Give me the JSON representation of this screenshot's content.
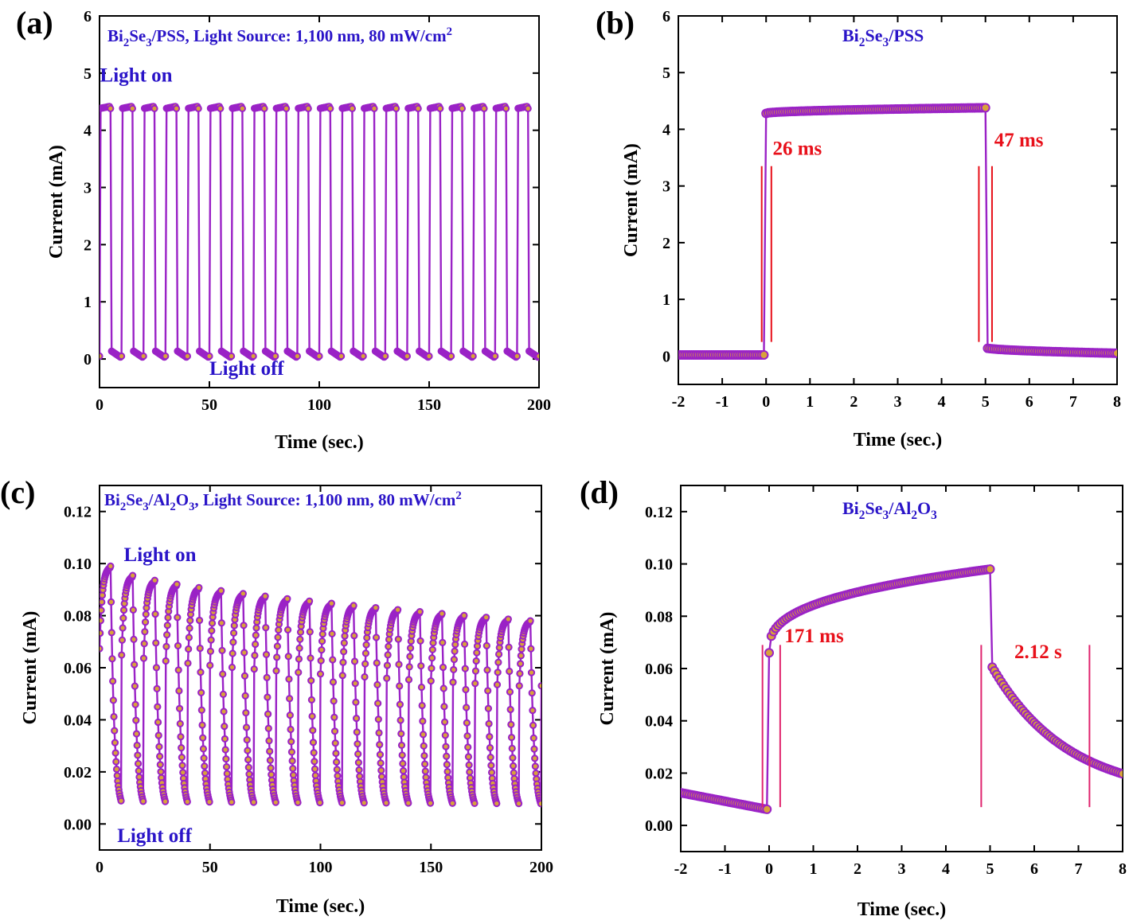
{
  "colors": {
    "series": "#9a22c6",
    "marker_fill": "#d9a23a",
    "marker_stroke": "#9a22c6",
    "label_blue": "#2a14c8",
    "label_red": "#e8101a",
    "guide_red": "#e8101a",
    "guide_pink": "#e0246e"
  },
  "chart_data": [
    {
      "panel": "(a)",
      "type": "line",
      "title_parts": [
        {
          "t": "Bi"
        },
        {
          "t": "2",
          "s": "sub"
        },
        {
          "t": "Se"
        },
        {
          "t": "3",
          "s": "sub"
        },
        {
          "t": "/PSS, Light Source: 1,100 nm, 80 mW/cm"
        },
        {
          "t": "2",
          "s": "sup"
        }
      ],
      "xlabel": "Time (sec.)",
      "ylabel": "Current (mA)",
      "xlim": [
        0,
        200
      ],
      "ylim": [
        -0.5,
        6
      ],
      "xticks": [
        0,
        50,
        100,
        150,
        200
      ],
      "yticks": [
        0,
        1,
        2,
        3,
        4,
        5,
        6
      ],
      "ytick_labels": [
        "0",
        "1",
        "2",
        "3",
        "4",
        "5",
        "6"
      ],
      "series": [
        {
          "name": "Bi2Se3/PSS",
          "model": "square",
          "period": 10,
          "on_fraction": 0.5,
          "phase": 0,
          "low": 0.05,
          "high": 4.38,
          "rise_tau": 0.03,
          "decay_tau": 0.05,
          "high_end": 4.42,
          "low_start": 0.15,
          "low_end": 0.02,
          "dt": 0.5
        }
      ],
      "annotations": [
        {
          "text": "Light on",
          "x": 0.2,
          "y": 4.85,
          "color": "blue"
        },
        {
          "text": "Light off",
          "x": 50,
          "y": -0.28,
          "color": "blue"
        }
      ]
    },
    {
      "panel": "(b)",
      "type": "line",
      "title_parts": [
        {
          "t": "Bi"
        },
        {
          "t": "2",
          "s": "sub"
        },
        {
          "t": "Se"
        },
        {
          "t": "3",
          "s": "sub"
        },
        {
          "t": "/PSS"
        }
      ],
      "xlabel": "Time (sec.)",
      "ylabel": "Current (mA)",
      "xlim": [
        -2,
        8
      ],
      "ylim": [
        -0.5,
        6
      ],
      "xticks": [
        -2,
        -1,
        0,
        1,
        2,
        3,
        4,
        5,
        6,
        7,
        8
      ],
      "yticks": [
        0,
        1,
        2,
        3,
        4,
        5,
        6
      ],
      "ytick_labels": [
        "0",
        "1",
        "2",
        "3",
        "4",
        "5",
        "6"
      ],
      "series": [
        {
          "name": "Bi2Se3/PSS",
          "model": "single",
          "on_time": 0,
          "off_time": 5,
          "low": 0.02,
          "high": 4.28,
          "high_end": 4.38,
          "rise_tau": 0.026,
          "decay_tau": 0.047,
          "low_after": 0.15,
          "low_end": 0.05,
          "dt": 0.05
        }
      ],
      "guides": [
        -0.1,
        0.12,
        4.85,
        5.15
      ],
      "annotations": [
        {
          "text": "26 ms",
          "x": 0.15,
          "y": 3.55,
          "color": "red"
        },
        {
          "text": "47 ms",
          "x": 5.2,
          "y": 3.7,
          "color": "red"
        }
      ]
    },
    {
      "panel": "(c)",
      "type": "line",
      "title_parts": [
        {
          "t": "Bi"
        },
        {
          "t": "2",
          "s": "sub"
        },
        {
          "t": "Se"
        },
        {
          "t": "3",
          "s": "sub"
        },
        {
          "t": "/Al"
        },
        {
          "t": "2",
          "s": "sub"
        },
        {
          "t": "O"
        },
        {
          "t": "3",
          "s": "sub"
        },
        {
          "t": ", Light Source: 1,100 nm, 80 mW/cm"
        },
        {
          "t": "2",
          "s": "sup"
        }
      ],
      "xlabel": "Time (sec.)",
      "ylabel": "Current (mA)",
      "xlim": [
        0,
        200
      ],
      "ylim": [
        -0.01,
        0.13
      ],
      "xticks": [
        0,
        50,
        100,
        150,
        200
      ],
      "yticks": [
        0,
        0.02,
        0.04,
        0.06,
        0.08,
        0.1,
        0.12
      ],
      "ytick_labels": [
        "0.00",
        "0.02",
        "0.04",
        "0.06",
        "0.08",
        "0.10",
        "0.12"
      ],
      "series": [
        {
          "name": "Bi2Se3/Al2O3",
          "model": "slow",
          "period": 10,
          "on_fraction": 0.5,
          "phase": 0,
          "peaks_start": 0.099,
          "peaks_end": 0.078,
          "low": 0.004,
          "rise_tau": 1.2,
          "decay_tau": 1.6,
          "dt": 0.25
        }
      ],
      "annotations": [
        {
          "text": "Light on",
          "x": 11,
          "y": 0.101,
          "color": "blue"
        },
        {
          "text": "Light off",
          "x": 8,
          "y": -0.007,
          "color": "blue"
        }
      ]
    },
    {
      "panel": "(d)",
      "type": "line",
      "title_parts": [
        {
          "t": "Bi"
        },
        {
          "t": "2",
          "s": "sub"
        },
        {
          "t": "Se"
        },
        {
          "t": "3",
          "s": "sub"
        },
        {
          "t": "/Al"
        },
        {
          "t": "2",
          "s": "sub"
        },
        {
          "t": "O"
        },
        {
          "t": "3",
          "s": "sub"
        }
      ],
      "xlabel": "Time (sec.)",
      "ylabel": "Current (mA)",
      "xlim": [
        -2,
        8
      ],
      "ylim": [
        -0.01,
        0.13
      ],
      "xticks": [
        -2,
        -1,
        0,
        1,
        2,
        3,
        4,
        5,
        6,
        7,
        8
      ],
      "yticks": [
        0,
        0.02,
        0.04,
        0.06,
        0.08,
        0.1,
        0.12
      ],
      "ytick_labels": [
        "0.00",
        "0.02",
        "0.04",
        "0.06",
        "0.08",
        "0.10",
        "0.12"
      ],
      "series": [
        {
          "name": "Bi2Se3/Al2O3",
          "model": "single_slow",
          "on_time": 0,
          "off_time": 5,
          "low_start": 0.0125,
          "low_end": 0.006,
          "jump_to": 0.066,
          "high_end": 0.098,
          "decay_to": 0.011,
          "decay_tau": 1.7,
          "dt": 0.05
        }
      ],
      "guides": [
        -0.15,
        0.25,
        4.8,
        7.25
      ],
      "annotations": [
        {
          "text": "171 ms",
          "x": 0.35,
          "y": 0.07,
          "color": "red"
        },
        {
          "text": "2.12 s",
          "x": 5.55,
          "y": 0.064,
          "color": "red"
        }
      ]
    }
  ]
}
